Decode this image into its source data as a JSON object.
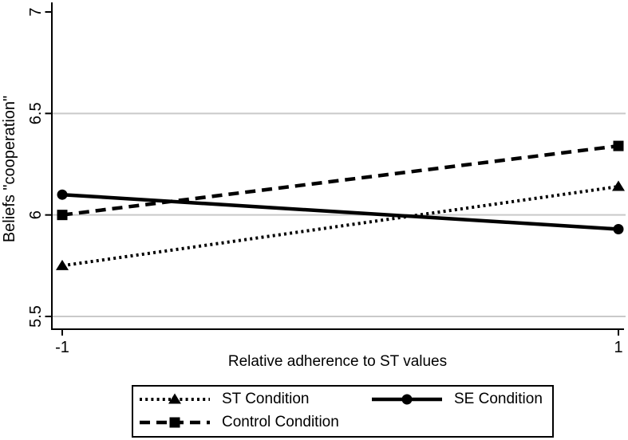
{
  "figure": {
    "background": "#ffffff",
    "text_color": "#000000"
  },
  "chart_data": {
    "type": "line",
    "x": [
      -1,
      1
    ],
    "series": [
      {
        "name": "ST Condition",
        "marker": "triangle",
        "linestyle": "dotted",
        "values": [
          5.75,
          6.14
        ]
      },
      {
        "name": "SE Condition",
        "marker": "circle",
        "linestyle": "solid",
        "values": [
          6.1,
          5.93
        ]
      },
      {
        "name": "Control Condition",
        "marker": "square",
        "linestyle": "dashed",
        "values": [
          6.0,
          6.34
        ]
      }
    ],
    "xlabel": "Relative adherence to ST values",
    "ylabel": "Beliefs \"cooperation\"",
    "xticks": [
      -1,
      1
    ],
    "yticks": [
      5.5,
      6,
      6.5,
      7
    ],
    "grid_yticks": [
      5.5,
      6,
      6.5
    ],
    "xlim": [
      -1.04,
      1.02
    ],
    "ylim": [
      5.43,
      7.05
    ],
    "grid": "horizontal-only",
    "legend": {
      "position": "bottom",
      "columns": 2,
      "border": true
    },
    "colors": {
      "series": "#000000",
      "axis": "#000000",
      "grid": "#c9c9c9",
      "background": "#ffffff"
    }
  }
}
